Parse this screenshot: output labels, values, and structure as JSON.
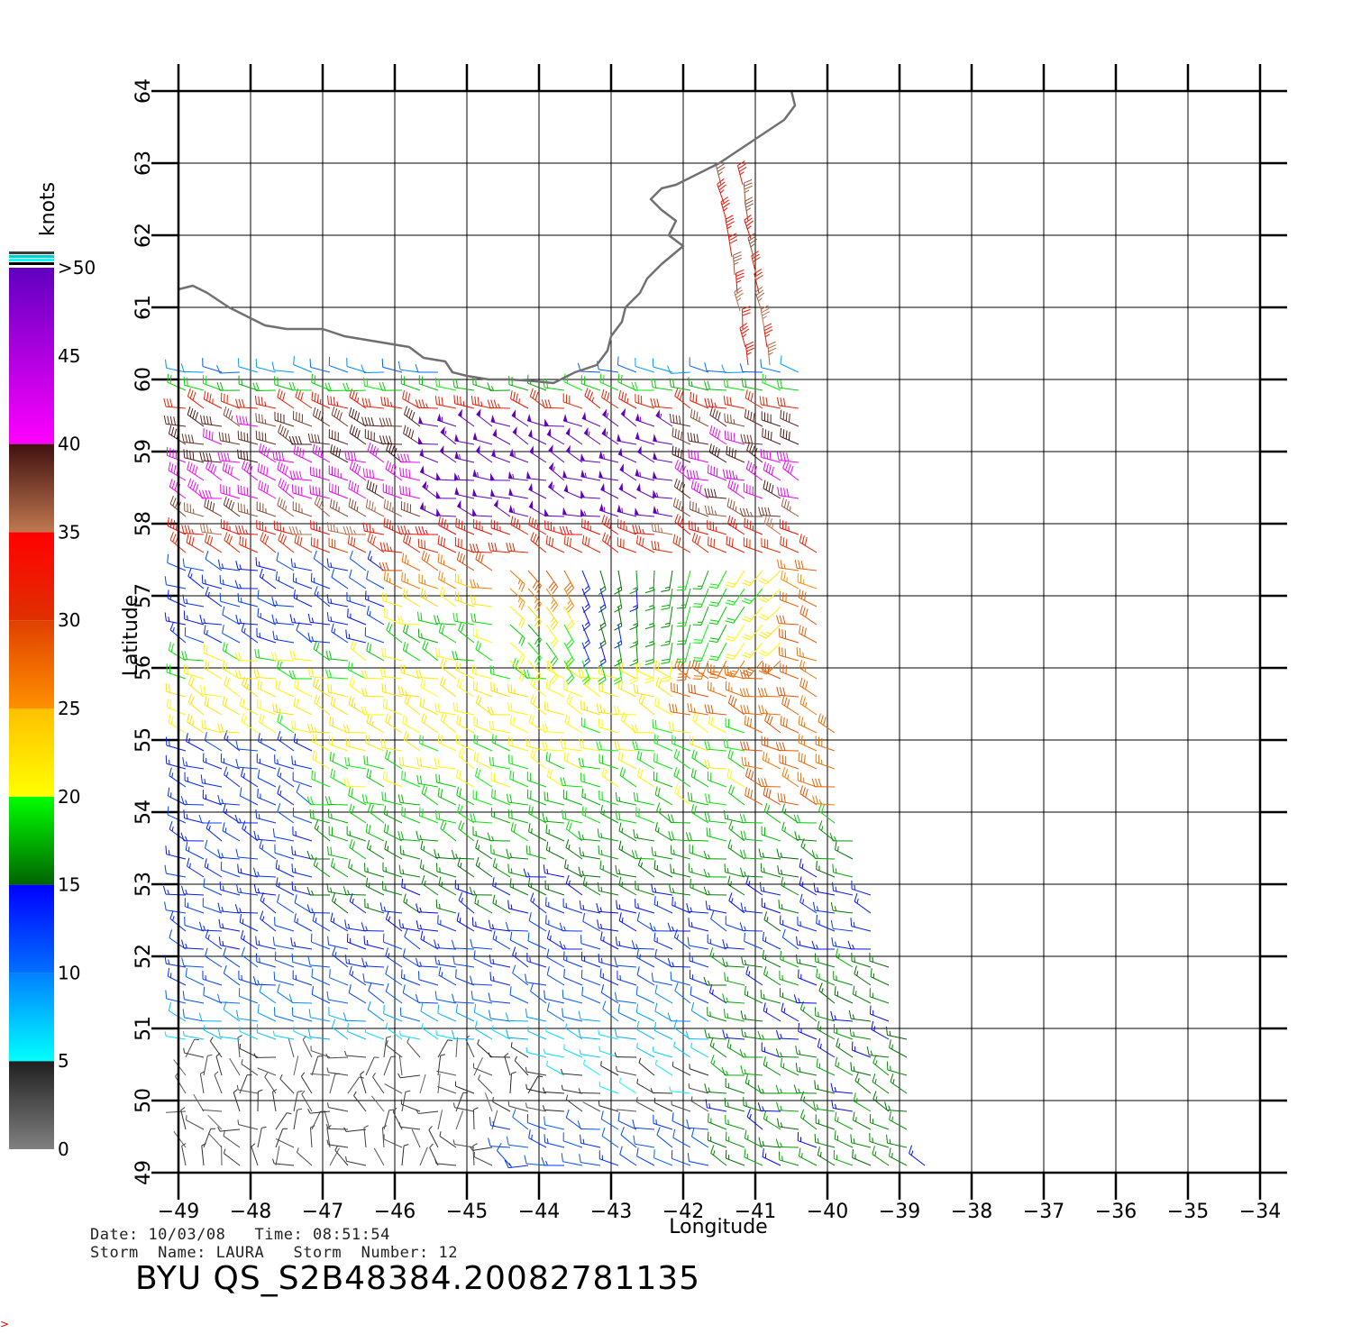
{
  "chart_data": {
    "type": "wind-barb-map",
    "xlabel": "Longitude",
    "ylabel": "Latitude",
    "xlim": [
      -49,
      -34
    ],
    "ylim": [
      49,
      64
    ],
    "x_ticks": [
      "−49",
      "−48",
      "−47",
      "−46",
      "−45",
      "−44",
      "−43",
      "−42",
      "−41",
      "−40",
      "−39",
      "−38",
      "−37",
      "−36",
      "−35",
      "−34"
    ],
    "y_ticks": [
      "49",
      "50",
      "51",
      "52",
      "53",
      "54",
      "55",
      "56",
      "57",
      "58",
      "59",
      "60",
      "61",
      "62",
      "63",
      "64"
    ],
    "grid": true,
    "colorbar": {
      "title": "knots",
      "labels": [
        "0",
        "5",
        "10",
        "15",
        "20",
        "25",
        "30",
        "35",
        "40",
        "45",
        ">50"
      ],
      "stops": [
        {
          "from": 0,
          "to": 5,
          "c1": "#808080",
          "c2": "#202020"
        },
        {
          "from": 5,
          "to": 10,
          "c1": "#00ffff",
          "c2": "#0080ff"
        },
        {
          "from": 10,
          "to": 15,
          "c1": "#0070ff",
          "c2": "#0000ff"
        },
        {
          "from": 15,
          "to": 20,
          "c1": "#006400",
          "c2": "#00ff00"
        },
        {
          "from": 20,
          "to": 25,
          "c1": "#ffff00",
          "c2": "#ffc000"
        },
        {
          "from": 25,
          "to": 30,
          "c1": "#ff9000",
          "c2": "#e04000"
        },
        {
          "from": 30,
          "to": 35,
          "c1": "#e03000",
          "c2": "#ff0000"
        },
        {
          "from": 35,
          "to": 40,
          "c1": "#c07850",
          "c2": "#401010"
        },
        {
          "from": 40,
          "to": 50,
          "c1": "#ff00ff",
          "c2": "#6000c0"
        }
      ]
    },
    "coastline": [
      [
        -40.5,
        64.0
      ],
      [
        -40.45,
        63.8
      ],
      [
        -40.6,
        63.6
      ],
      [
        -40.9,
        63.4
      ],
      [
        -41.2,
        63.2
      ],
      [
        -41.5,
        63.0
      ],
      [
        -41.8,
        62.85
      ],
      [
        -42.1,
        62.7
      ],
      [
        -42.3,
        62.65
      ],
      [
        -42.45,
        62.5
      ],
      [
        -42.3,
        62.35
      ],
      [
        -42.1,
        62.2
      ],
      [
        -42.2,
        62.0
      ],
      [
        -42.0,
        61.85
      ],
      [
        -42.3,
        61.6
      ],
      [
        -42.5,
        61.4
      ],
      [
        -42.6,
        61.2
      ],
      [
        -42.8,
        61.0
      ],
      [
        -42.85,
        60.8
      ],
      [
        -43.0,
        60.6
      ],
      [
        -43.05,
        60.4
      ],
      [
        -43.2,
        60.2
      ],
      [
        -43.5,
        60.1
      ],
      [
        -43.8,
        59.95
      ],
      [
        -44.1,
        59.98
      ],
      [
        -44.4,
        60.0
      ],
      [
        -44.7,
        60.0
      ],
      [
        -45.0,
        60.05
      ],
      [
        -45.2,
        60.1
      ],
      [
        -45.3,
        60.25
      ],
      [
        -45.6,
        60.3
      ],
      [
        -45.8,
        60.45
      ],
      [
        -46.1,
        60.5
      ],
      [
        -46.4,
        60.55
      ],
      [
        -46.7,
        60.6
      ],
      [
        -47.0,
        60.7
      ],
      [
        -47.5,
        60.7
      ],
      [
        -47.8,
        60.75
      ],
      [
        -48.0,
        60.85
      ],
      [
        -48.3,
        61.0
      ],
      [
        -48.6,
        61.2
      ],
      [
        -48.8,
        61.3
      ],
      [
        -49.0,
        61.25
      ]
    ],
    "wind_field": {
      "lat_range": [
        49.0,
        62.8
      ],
      "swath_east_edge": [
        [
          49,
          -38.6
        ],
        [
          51,
          -38.9
        ],
        [
          53,
          -39.4
        ],
        [
          54,
          -39.7
        ],
        [
          56,
          -40.0
        ],
        [
          57,
          -40.1
        ],
        [
          60,
          -40.3
        ],
        [
          62,
          -40.8
        ]
      ],
      "swath_west_edge": [
        [
          49,
          -49.0
        ],
        [
          60,
          -49.0
        ],
        [
          60.2,
          -49.0
        ]
      ],
      "speed_bands_knots_by_lat": [
        {
          "lat": 49.5,
          "speed": 3
        },
        {
          "lat": 50.5,
          "speed": 5
        },
        {
          "lat": 51.5,
          "speed": 12
        },
        {
          "lat": 52.5,
          "speed": 14
        },
        {
          "lat": 53.5,
          "speed": 17
        },
        {
          "lat": 54.5,
          "speed": 20
        },
        {
          "lat": 55.5,
          "speed": 22
        },
        {
          "lat": 56.5,
          "speed": 18
        },
        {
          "lat": 57.5,
          "speed": 30
        },
        {
          "lat": 58.5,
          "speed": 42
        },
        {
          "lat": 59.5,
          "speed": 38
        },
        {
          "lat": 60.0,
          "speed": 10
        }
      ]
    }
  },
  "footer": {
    "date_label": "Date:",
    "date": "10/03/08",
    "time_label": "Time:",
    "time": "08:51:54",
    "storm_name_label": "Storm  Name:",
    "storm_name": "LAURA",
    "storm_number_label": "Storm  Number:",
    "storm_number": "12",
    "product_id": "BYU  QS_S2B48384.20082781135",
    "corner_mark": ">"
  },
  "colors": {
    "coastline": "#707070",
    "grid": "#000000"
  }
}
